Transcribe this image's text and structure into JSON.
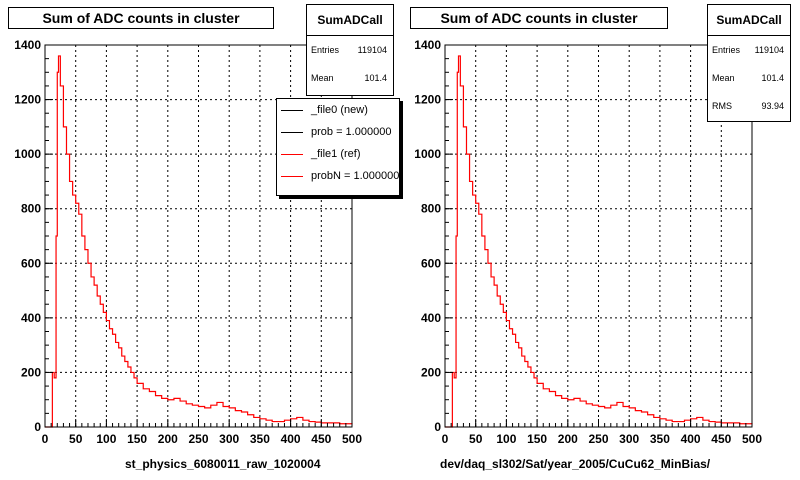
{
  "colors": {
    "new": "#000000",
    "ref": "#ff0000"
  },
  "panels": [
    {
      "title": "Sum of ADC counts in cluster",
      "xlabel": "st_physics_6080011_raw_1020004",
      "stats": {
        "name": "SumADCall",
        "rows": [
          {
            "label": "Entries",
            "value": "119104"
          },
          {
            "label": "Mean",
            "value": "101.4"
          }
        ]
      },
      "legend": [
        {
          "label": "_file0 (new)",
          "color": "#000000"
        },
        {
          "label": "prob = 1.000000",
          "color": "#000000"
        },
        {
          "label": "_file1 (ref)",
          "color": "#ff0000"
        },
        {
          "label": "probN = 1.000000",
          "color": "#ff0000"
        }
      ]
    },
    {
      "title": "Sum of ADC counts in cluster",
      "xlabel": "dev/daq_sl302/Sat/year_2005/CuCu62_MinBias/",
      "stats": {
        "name": "SumADCall",
        "rows": [
          {
            "label": "Entries",
            "value": "119104"
          },
          {
            "label": "Mean",
            "value": "101.4"
          },
          {
            "label": "RMS",
            "value": "93.94"
          }
        ]
      }
    }
  ],
  "chart_data": [
    {
      "type": "line",
      "title": "Sum of ADC counts in cluster",
      "xlabel": "st_physics_6080011_raw_1020004",
      "ylabel": "",
      "xlim": [
        0,
        500
      ],
      "ylim": [
        0,
        1400
      ],
      "grid": true,
      "xticks": [
        0,
        50,
        100,
        150,
        200,
        250,
        300,
        350,
        400,
        450,
        500
      ],
      "yticks": [
        0,
        200,
        400,
        600,
        800,
        1000,
        1200,
        1400
      ],
      "series": [
        {
          "name": "_file1 (ref)",
          "color": "#ff0000",
          "x": [
            0,
            10,
            12,
            15,
            18,
            20,
            22,
            25,
            30,
            35,
            40,
            45,
            50,
            55,
            60,
            65,
            70,
            75,
            80,
            85,
            90,
            95,
            100,
            105,
            110,
            115,
            120,
            125,
            130,
            135,
            140,
            145,
            150,
            160,
            170,
            180,
            190,
            200,
            210,
            220,
            230,
            240,
            250,
            260,
            270,
            280,
            290,
            300,
            310,
            320,
            330,
            340,
            350,
            360,
            370,
            380,
            390,
            400,
            410,
            420,
            430,
            440,
            450,
            460,
            470,
            480,
            490,
            500
          ],
          "y": [
            0,
            0,
            200,
            180,
            700,
            1300,
            1360,
            1250,
            1100,
            1000,
            900,
            850,
            820,
            780,
            700,
            650,
            600,
            550,
            520,
            480,
            450,
            420,
            390,
            360,
            340,
            310,
            290,
            260,
            240,
            220,
            200,
            180,
            160,
            140,
            130,
            115,
            105,
            100,
            105,
            95,
            85,
            80,
            75,
            70,
            80,
            90,
            75,
            70,
            60,
            55,
            45,
            35,
            30,
            25,
            20,
            20,
            25,
            30,
            35,
            25,
            20,
            18,
            15,
            15,
            15,
            12,
            12,
            10
          ]
        }
      ]
    },
    {
      "type": "line",
      "title": "Sum of ADC counts in cluster",
      "xlabel": "dev/daq_sl302/Sat/year_2005/CuCu62_MinBias/",
      "ylabel": "",
      "xlim": [
        0,
        500
      ],
      "ylim": [
        0,
        1400
      ],
      "grid": true,
      "xticks": [
        0,
        50,
        100,
        150,
        200,
        250,
        300,
        350,
        400,
        450,
        500
      ],
      "yticks": [
        0,
        200,
        400,
        600,
        800,
        1000,
        1200,
        1400
      ],
      "series": [
        {
          "name": "SumADCall",
          "color": "#ff0000",
          "x": [
            0,
            10,
            12,
            15,
            18,
            20,
            22,
            25,
            30,
            35,
            40,
            45,
            50,
            55,
            60,
            65,
            70,
            75,
            80,
            85,
            90,
            95,
            100,
            105,
            110,
            115,
            120,
            125,
            130,
            135,
            140,
            145,
            150,
            160,
            170,
            180,
            190,
            200,
            210,
            220,
            230,
            240,
            250,
            260,
            270,
            280,
            290,
            300,
            310,
            320,
            330,
            340,
            350,
            360,
            370,
            380,
            390,
            400,
            410,
            420,
            430,
            440,
            450,
            460,
            470,
            480,
            490,
            500
          ],
          "y": [
            0,
            0,
            200,
            180,
            700,
            1300,
            1360,
            1250,
            1100,
            1000,
            900,
            850,
            820,
            780,
            700,
            650,
            600,
            550,
            520,
            480,
            450,
            420,
            390,
            360,
            340,
            310,
            290,
            260,
            240,
            220,
            200,
            180,
            160,
            140,
            130,
            115,
            105,
            100,
            105,
            95,
            85,
            80,
            75,
            70,
            80,
            90,
            75,
            70,
            60,
            55,
            45,
            35,
            30,
            25,
            20,
            20,
            25,
            30,
            35,
            25,
            20,
            18,
            15,
            15,
            15,
            12,
            12,
            10
          ]
        }
      ]
    }
  ]
}
